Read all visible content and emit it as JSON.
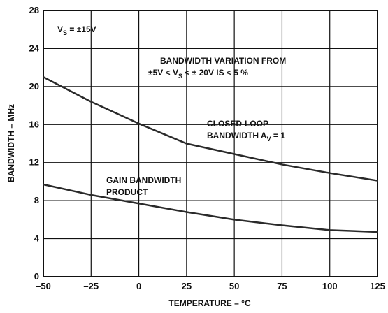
{
  "chart_data": {
    "type": "line",
    "x": [
      -50,
      -25,
      0,
      25,
      50,
      75,
      100,
      125
    ],
    "series": [
      {
        "name": "CLOSED-LOOP BANDWIDTH",
        "color": "#2a2a2a",
        "values": [
          21,
          18.4,
          16.1,
          14.0,
          12.9,
          11.8,
          10.9,
          10.1
        ]
      },
      {
        "name": "GAIN BANDWIDTH PRODUCT",
        "color": "#2a2a2a",
        "values": [
          9.7,
          8.6,
          7.7,
          6.8,
          6.0,
          5.4,
          4.9,
          4.7
        ]
      }
    ],
    "xlabel": "TEMPERATURE – °C",
    "ylabel": "BANDWIDTH – MHz",
    "xlim": [
      -50,
      125
    ],
    "xticks": [
      {
        "value": -50,
        "label": "–50"
      },
      {
        "value": -25,
        "label": "–25"
      },
      0,
      25,
      50,
      75,
      100,
      125
    ],
    "ylim": [
      0,
      28
    ],
    "yticks": [
      0,
      4,
      8,
      12,
      16,
      20,
      24,
      28
    ],
    "grid": true,
    "annotations": [
      [
        [
          {
            "text": "V"
          },
          {
            "text": "S",
            "sub": true
          },
          {
            "text": " = ±15V"
          }
        ]
      ],
      [
        [
          {
            "text": "BANDWIDTH VARIATION FROM"
          }
        ],
        [
          {
            "text": "±5V < V"
          },
          {
            "text": "S",
            "sub": true
          },
          {
            "text": " < ± 20V IS < 5 %"
          }
        ]
      ],
      [
        [
          {
            "text": "CLOSED-LOOP"
          }
        ],
        [
          {
            "text": "BANDWIDTH A"
          },
          {
            "text": "V",
            "sub": true
          },
          {
            "text": " = 1"
          }
        ]
      ],
      [
        [
          {
            "text": "GAIN BANDWIDTH"
          }
        ],
        [
          {
            "text": "PRODUCT"
          }
        ]
      ]
    ]
  }
}
